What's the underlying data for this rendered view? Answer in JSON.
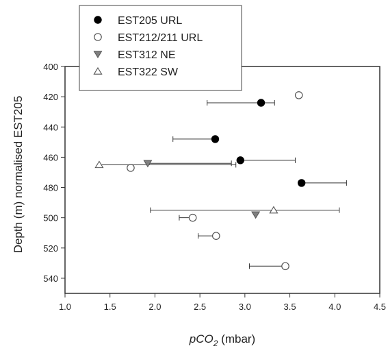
{
  "chart_data": {
    "type": "scatter",
    "xlabel": {
      "italic": "pCO",
      "sub": "2",
      "rest": " (mbar)"
    },
    "ylabel": "Depth (m) normalised EST205",
    "xlim": [
      1.0,
      4.5
    ],
    "ylim": [
      550,
      400
    ],
    "x_ticks": [
      "1.0",
      "1.5",
      "2.0",
      "2.5",
      "3.0",
      "3.5",
      "4.0",
      "4.5"
    ],
    "y_ticks": [
      "400",
      "420",
      "440",
      "460",
      "480",
      "500",
      "520",
      "540"
    ],
    "y_inverted": true,
    "grid": false,
    "legend_position": "top-left",
    "series": [
      {
        "name": "EST205 URL",
        "marker": "circle-filled",
        "color": "#000000",
        "points": [
          {
            "x": 3.18,
            "y": 424,
            "xerr": [
              2.58,
              3.33
            ]
          },
          {
            "x": 2.67,
            "y": 448,
            "xerr": [
              2.2,
              2.67
            ]
          },
          {
            "x": 2.95,
            "y": 462,
            "xerr": [
              2.93,
              3.56
            ]
          },
          {
            "x": 3.63,
            "y": 477,
            "xerr": [
              3.63,
              4.13
            ]
          }
        ]
      },
      {
        "name": "EST212/211 URL",
        "marker": "circle-open",
        "color": "#555555",
        "points": [
          {
            "x": 3.6,
            "y": 419
          },
          {
            "x": 1.73,
            "y": 467
          },
          {
            "x": 2.42,
            "y": 500,
            "xerr": [
              2.27,
              2.42
            ]
          },
          {
            "x": 2.68,
            "y": 512,
            "xerr": [
              2.48,
              2.68
            ]
          },
          {
            "x": 3.45,
            "y": 532,
            "xerr": [
              3.05,
              3.45
            ]
          }
        ]
      },
      {
        "name": "EST312 NE",
        "marker": "triangle-down-filled",
        "color": "#808080",
        "points": [
          {
            "x": 1.92,
            "y": 464,
            "xerr": [
              1.92,
              2.85
            ]
          },
          {
            "x": 3.12,
            "y": 498
          }
        ]
      },
      {
        "name": "EST322 SW",
        "marker": "triangle-up-open",
        "color": "#555555",
        "points": [
          {
            "x": 1.38,
            "y": 465,
            "xerr": [
              1.38,
              2.9
            ]
          },
          {
            "x": 3.32,
            "y": 495,
            "xerr": [
              1.95,
              4.05
            ]
          }
        ]
      }
    ]
  }
}
